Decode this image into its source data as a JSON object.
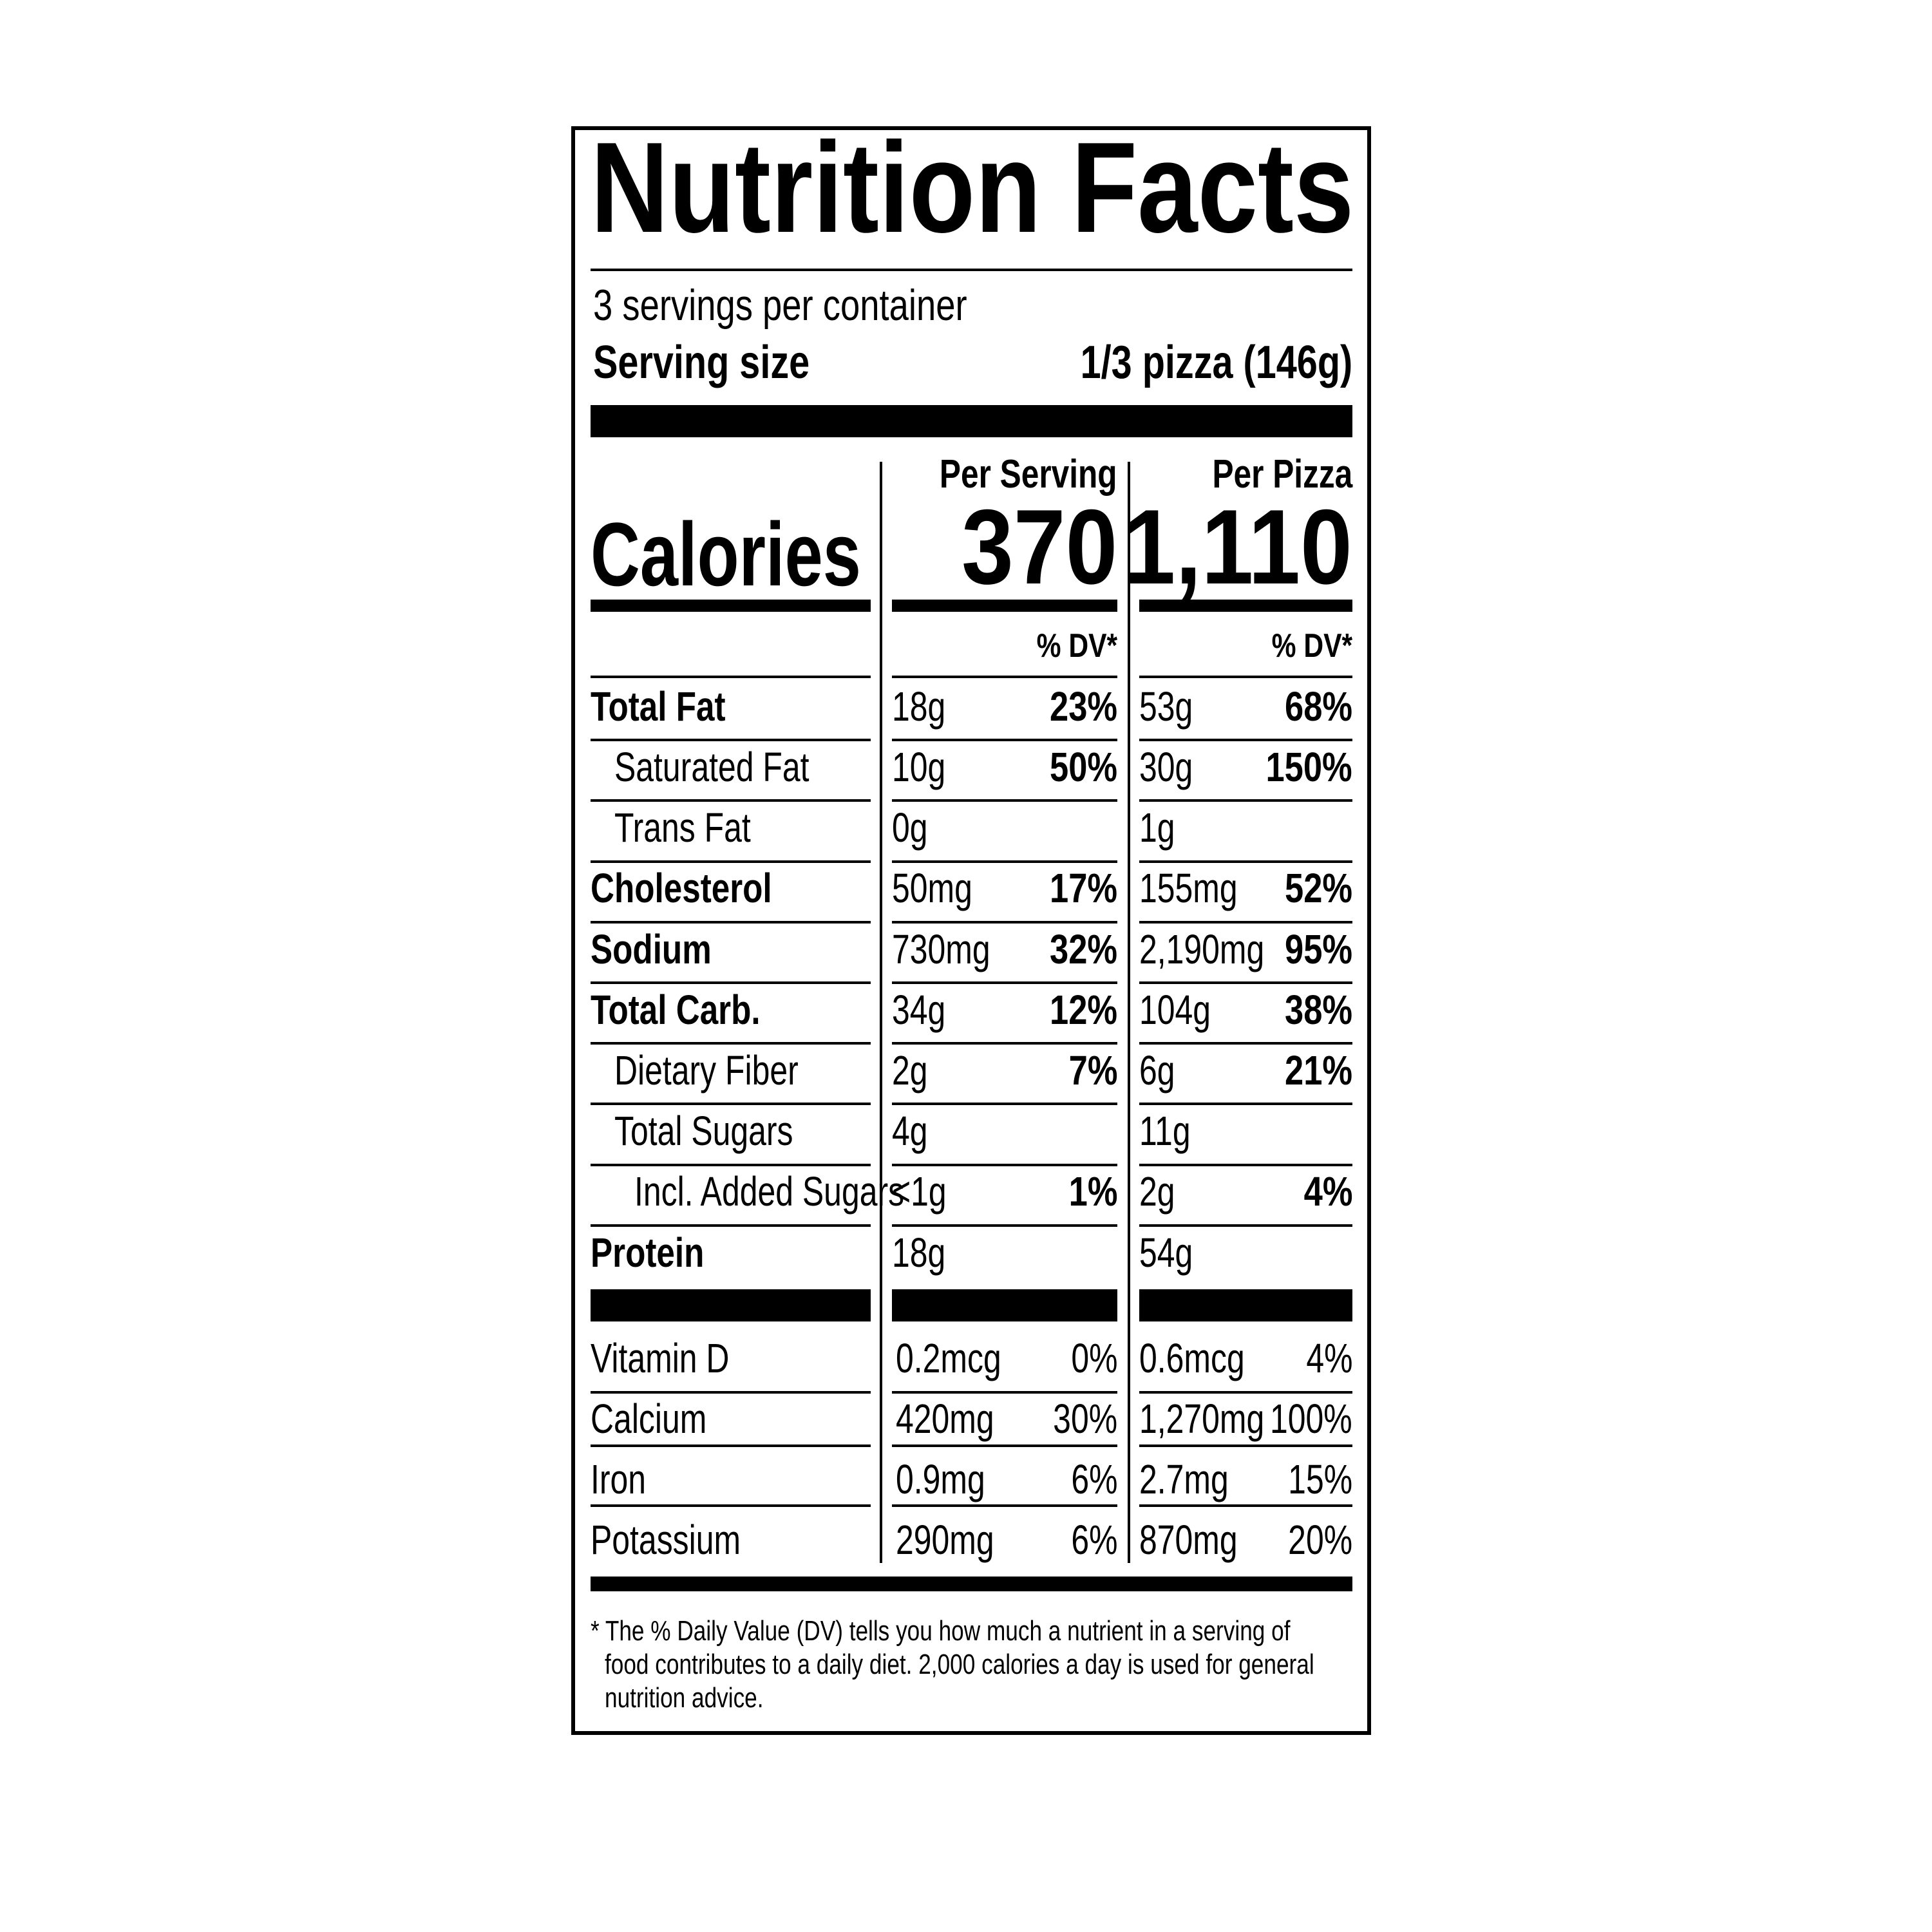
{
  "title": "Nutrition Facts",
  "servings_per_container": "3 servings per container",
  "serving_size_label": "Serving size",
  "serving_size_value": "1/3 pizza (146g)",
  "columns": {
    "serving_header": "Per Serving",
    "pizza_header": "Per Pizza",
    "dv_header": "% DV*"
  },
  "calories": {
    "label": "Calories",
    "per_serving": "370",
    "per_pizza": "1,110"
  },
  "nutrients": [
    {
      "label": "Total Fat",
      "level": 0,
      "serving": {
        "amount": "18g",
        "dv": "23%"
      },
      "pizza": {
        "amount": "53g",
        "dv": "68%"
      }
    },
    {
      "label": "Saturated Fat",
      "level": 1,
      "serving": {
        "amount": "10g",
        "dv": "50%"
      },
      "pizza": {
        "amount": "30g",
        "dv": "150%"
      }
    },
    {
      "label": "Trans Fat",
      "level": 1,
      "serving": {
        "amount": "0g",
        "dv": ""
      },
      "pizza": {
        "amount": "1g",
        "dv": ""
      }
    },
    {
      "label": "Cholesterol",
      "level": 0,
      "serving": {
        "amount": "50mg",
        "dv": "17%"
      },
      "pizza": {
        "amount": "155mg",
        "dv": "52%"
      }
    },
    {
      "label": "Sodium",
      "level": 0,
      "serving": {
        "amount": "730mg",
        "dv": "32%"
      },
      "pizza": {
        "amount": "2,190mg",
        "dv": "95%"
      }
    },
    {
      "label": "Total Carb.",
      "level": 0,
      "serving": {
        "amount": "34g",
        "dv": "12%"
      },
      "pizza": {
        "amount": "104g",
        "dv": "38%"
      }
    },
    {
      "label": "Dietary Fiber",
      "level": 1,
      "serving": {
        "amount": "2g",
        "dv": "7%"
      },
      "pizza": {
        "amount": "6g",
        "dv": "21%"
      }
    },
    {
      "label": "Total Sugars",
      "level": 1,
      "serving": {
        "amount": "4g",
        "dv": ""
      },
      "pizza": {
        "amount": "11g",
        "dv": ""
      }
    },
    {
      "label": "Incl. Added Sugars",
      "level": 2,
      "serving": {
        "amount": "<1g",
        "dv": "1%"
      },
      "pizza": {
        "amount": "2g",
        "dv": "4%"
      }
    },
    {
      "label": "Protein",
      "level": 0,
      "serving": {
        "amount": "18g",
        "dv": ""
      },
      "pizza": {
        "amount": "54g",
        "dv": ""
      }
    }
  ],
  "micronutrients": [
    {
      "label": "Vitamin D",
      "serving": {
        "amount": "0.2mcg",
        "dv": "0%"
      },
      "pizza": {
        "amount": "0.6mcg",
        "dv": "4%"
      }
    },
    {
      "label": "Calcium",
      "serving": {
        "amount": "420mg",
        "dv": "30%"
      },
      "pizza": {
        "amount": "1,270mg",
        "dv": "100%"
      }
    },
    {
      "label": "Iron",
      "serving": {
        "amount": "0.9mg",
        "dv": "6%"
      },
      "pizza": {
        "amount": "2.7mg",
        "dv": "15%"
      }
    },
    {
      "label": "Potassium",
      "serving": {
        "amount": "290mg",
        "dv": "6%"
      },
      "pizza": {
        "amount": "870mg",
        "dv": "20%"
      }
    }
  ],
  "footnote": [
    "* The % Daily Value (DV) tells you how much a nutrient in a serving of",
    "food contributes to a daily diet. 2,000 calories a day is used for general",
    "nutrition advice."
  ]
}
